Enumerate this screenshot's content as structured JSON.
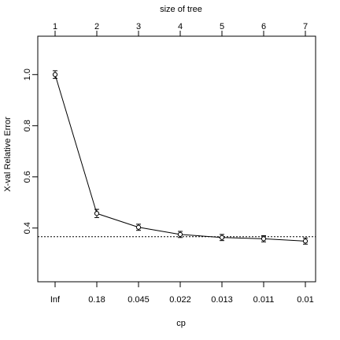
{
  "chart_data": {
    "type": "line",
    "top_axis_label": "size of tree",
    "xlabel": "cp",
    "ylabel": "X-val Relative Error",
    "cp_labels": [
      "Inf",
      "0.18",
      "0.045",
      "0.022",
      "0.013",
      "0.011",
      "0.01"
    ],
    "tree_sizes": [
      "1",
      "2",
      "3",
      "4",
      "5",
      "6",
      "7"
    ],
    "ylim": [
      0.19,
      1.15
    ],
    "y_ticks": [
      0.4,
      0.6,
      0.8,
      1.0
    ],
    "y_tick_labels": [
      "0.4",
      "0.6",
      "0.8",
      "1.0"
    ],
    "reference_line": 0.366,
    "series": [
      {
        "values": [
          1.0,
          0.457,
          0.403,
          0.375,
          0.363,
          0.358,
          0.349
        ],
        "error_low": [
          0.985,
          0.441,
          0.391,
          0.363,
          0.351,
          0.346,
          0.337
        ],
        "error_high": [
          1.015,
          0.473,
          0.415,
          0.387,
          0.375,
          0.37,
          0.361
        ]
      }
    ],
    "grid": false
  }
}
